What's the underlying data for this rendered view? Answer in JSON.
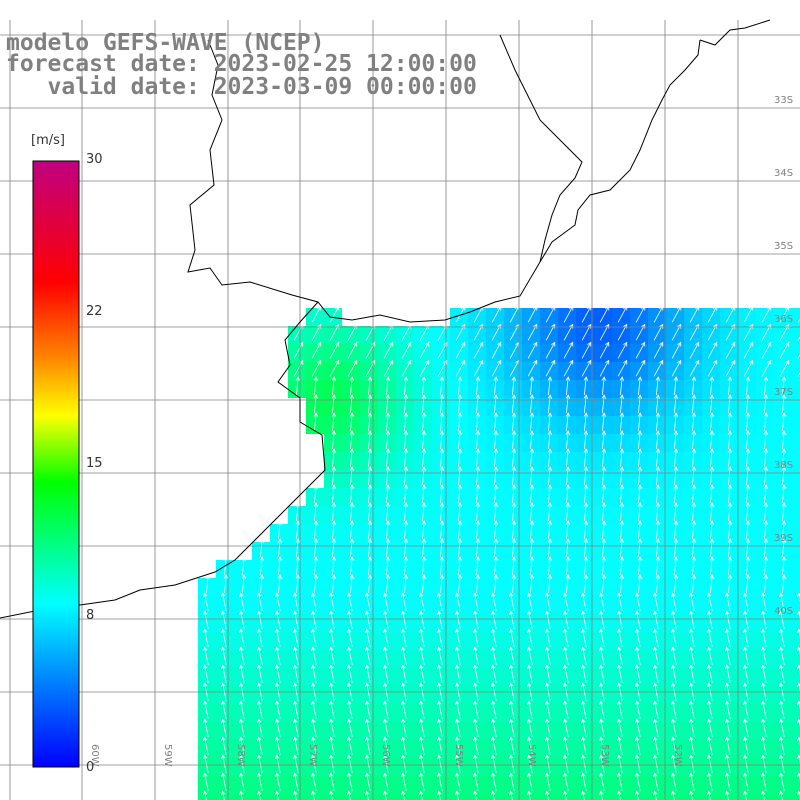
{
  "title": {
    "line1": "modelo GEFS-WAVE (NCEP)",
    "line2": "forecast date: 2023-02-25 12:00:00",
    "line3": "   valid date: 2023-03-09 00:00:00"
  },
  "colorbar": {
    "unit_label": "[m/s]",
    "ticks": [
      {
        "label": "30",
        "value": 30
      },
      {
        "label": "22",
        "value": 22
      },
      {
        "label": "15",
        "value": 15
      },
      {
        "label": "8",
        "value": 8
      },
      {
        "label": "0",
        "value": 0
      }
    ],
    "range": [
      0,
      30
    ],
    "colors": [
      "#0000ff",
      "#0080ff",
      "#00ffff",
      "#00ff00",
      "#ffff00",
      "#ff8000",
      "#ff0000",
      "#c00080"
    ]
  },
  "map": {
    "lat_labels": [
      "33S",
      "34S",
      "35S",
      "36S",
      "37S",
      "38S",
      "39S",
      "40S"
    ],
    "lon_labels": [
      "60W",
      "59W",
      "58W",
      "57W",
      "56W",
      "55W",
      "54W",
      "53W",
      "52W"
    ],
    "colors": {
      "land": "#ffffff",
      "coast": "#000000",
      "grid": "#808080",
      "arrow": "#ffffff"
    }
  }
}
